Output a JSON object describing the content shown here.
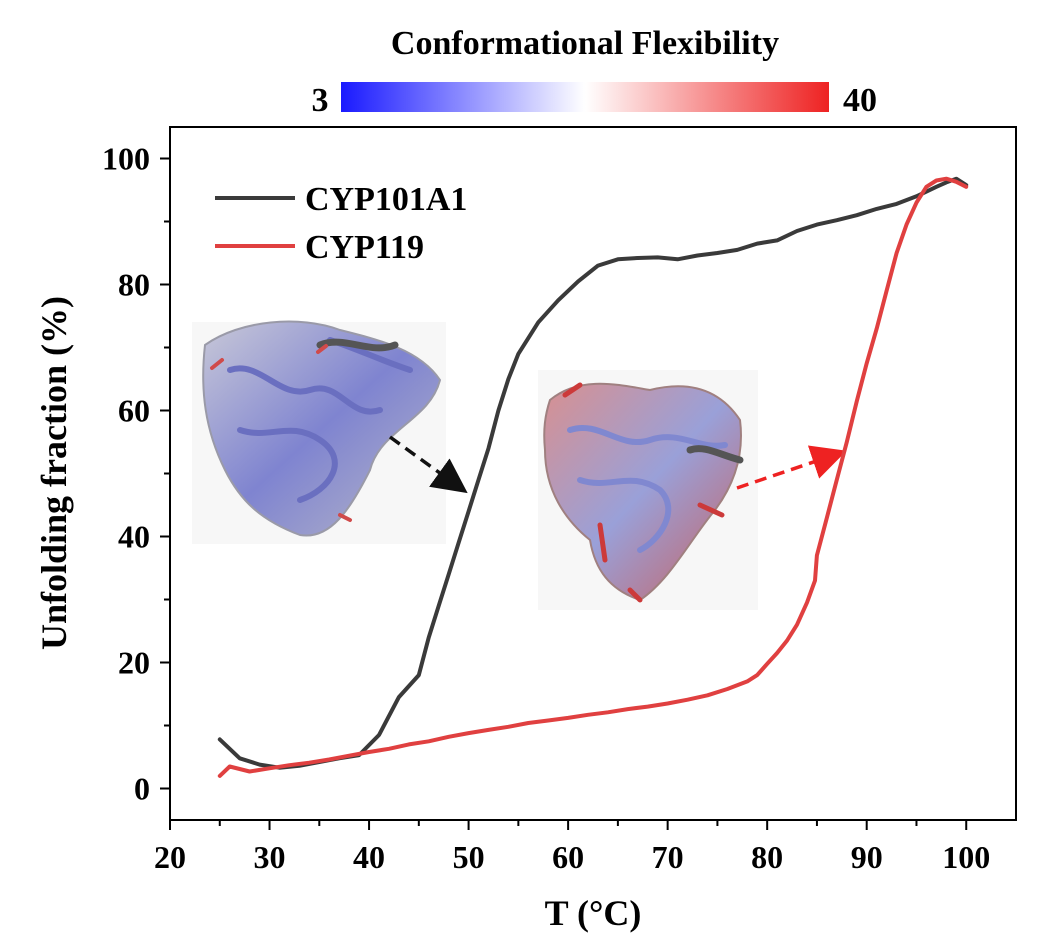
{
  "colorbar": {
    "title": "Conformational Flexibility",
    "min_label": "3",
    "max_label": "40",
    "low_color": "#1a1aff",
    "mid_color": "#ffffff",
    "high_color": "#ee2222"
  },
  "colors": {
    "CYP101A1": "#3a3a3a",
    "CYP119": "#e04040",
    "arrow_black": "#111111",
    "arrow_red": "#ee2222"
  },
  "insets": {
    "left_label": "CYP101A1 structure",
    "right_label": "CYP119 structure"
  },
  "chart_data": {
    "type": "line",
    "title": "",
    "xlabel": "T (°C)",
    "ylabel": "Unfolding fraction (%)",
    "xlim": [
      20,
      105
    ],
    "ylim": [
      -5,
      105
    ],
    "xticks": [
      20,
      30,
      40,
      50,
      60,
      70,
      80,
      90,
      100
    ],
    "yticks": [
      0,
      20,
      40,
      60,
      80,
      100
    ],
    "legend_position": "top-left",
    "series": [
      {
        "name": "CYP101A1",
        "x": [
          25,
          27,
          29,
          31,
          33,
          35,
          37,
          39,
          41,
          43,
          45,
          46,
          47,
          48,
          49,
          50,
          51,
          52,
          53,
          54,
          55,
          57,
          59,
          61,
          63,
          65,
          67,
          69,
          71,
          73,
          75,
          77,
          79,
          81,
          83,
          85,
          87,
          89,
          91,
          93,
          95,
          97,
          98,
          99,
          100
        ],
        "values": [
          7.8,
          4.8,
          3.8,
          3.3,
          3.6,
          4.2,
          4.8,
          5.3,
          8.5,
          14.5,
          18,
          24,
          29,
          34,
          39,
          44,
          49,
          54,
          60,
          65,
          69,
          74,
          77.5,
          80.5,
          83,
          84,
          84.2,
          84.3,
          84,
          84.6,
          85,
          85.5,
          86.5,
          87,
          88.5,
          89.5,
          90.2,
          91,
          92,
          92.8,
          94,
          95.5,
          96.2,
          96.8,
          95.8
        ]
      },
      {
        "name": "CYP119",
        "x": [
          25,
          26,
          28,
          30,
          32,
          34,
          36,
          38,
          40,
          42,
          44,
          46,
          48,
          50,
          52,
          54,
          56,
          58,
          60,
          62,
          64,
          66,
          68,
          70,
          72,
          74,
          76,
          78,
          79,
          80,
          81,
          82,
          83,
          84,
          84.8,
          85,
          86,
          87,
          88,
          89,
          90,
          91,
          92,
          93,
          94,
          95,
          96,
          97,
          98,
          99,
          100
        ],
        "values": [
          2,
          3.5,
          2.7,
          3.2,
          3.7,
          4.1,
          4.6,
          5.2,
          5.8,
          6.3,
          7,
          7.5,
          8.2,
          8.8,
          9.3,
          9.8,
          10.4,
          10.8,
          11.2,
          11.7,
          12.1,
          12.6,
          13,
          13.5,
          14.1,
          14.8,
          15.8,
          17,
          18,
          19.8,
          21.5,
          23.5,
          26,
          29.5,
          33,
          37,
          43,
          49,
          55,
          61.5,
          67.5,
          73,
          79,
          85,
          89.5,
          93,
          95.5,
          96.5,
          96.8,
          96.3,
          95.5
        ]
      }
    ]
  }
}
